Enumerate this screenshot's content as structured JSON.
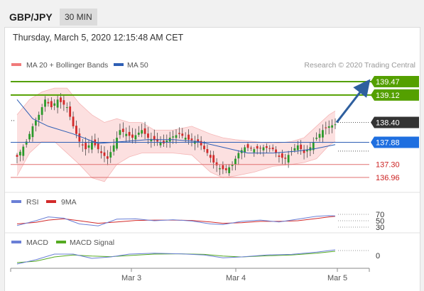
{
  "header": {
    "symbol": "GBP/JPY",
    "timeframe": "30 MIN",
    "datetime": "Thursday, March 5, 2020 12:15:48 AM CET"
  },
  "legend": {
    "bollinger": "MA 20 + Bollinger Bands",
    "ma50": "MA 50",
    "credit": "Research © 2020 Trading Central",
    "rsi": "RSI",
    "rsi_ma": "9MA",
    "macd": "MACD",
    "macd_signal": "MACD Signal"
  },
  "colors": {
    "bull": "#2a9a2a",
    "bear": "#d22a2a",
    "ma50": "#2e5fb5",
    "bollinger": "#f07a7a",
    "resistance": "#54a000",
    "support": "#e07070",
    "arrow": "#2e5f9e",
    "current": "#333333",
    "rsi": "#6a7fd6",
    "macd_signal": "#55aa22"
  },
  "chart_data": [
    {
      "type": "line",
      "name": "price",
      "x_ticks": [
        "Mar 3",
        "Mar 4",
        "Mar 5"
      ],
      "levels": [
        {
          "label": "139.47",
          "value": 139.47,
          "kind": "resistance"
        },
        {
          "label": "139.12",
          "value": 139.12,
          "kind": "resistance"
        },
        {
          "label": "138.40",
          "value": 138.4,
          "kind": "current"
        },
        {
          "label": "137.88",
          "value": 137.88,
          "kind": "pivot"
        },
        {
          "label": "137.30",
          "value": 137.3,
          "kind": "support"
        },
        {
          "label": "136.96",
          "value": 136.96,
          "kind": "support"
        }
      ],
      "close_path": [
        [
          0,
          137.5
        ],
        [
          3,
          137.9
        ],
        [
          5,
          138.3
        ],
        [
          7,
          138.6
        ],
        [
          9,
          139.0
        ],
        [
          11,
          138.8
        ],
        [
          13,
          139.0
        ],
        [
          16,
          138.8
        ],
        [
          18,
          138.3
        ],
        [
          20,
          137.9
        ],
        [
          22,
          137.7
        ],
        [
          24,
          137.9
        ],
        [
          27,
          137.6
        ],
        [
          29,
          137.45
        ],
        [
          31,
          137.8
        ],
        [
          33,
          138.2
        ],
        [
          35,
          138.1
        ],
        [
          37,
          138.0
        ],
        [
          40,
          138.2
        ],
        [
          42,
          138.0
        ],
        [
          45,
          137.9
        ],
        [
          47,
          137.85
        ],
        [
          49,
          138.0
        ],
        [
          52,
          138.1
        ],
        [
          55,
          137.95
        ],
        [
          58,
          137.9
        ],
        [
          61,
          137.6
        ],
        [
          63,
          137.35
        ],
        [
          65,
          137.2
        ],
        [
          67,
          137.15
        ],
        [
          69,
          137.3
        ],
        [
          71,
          137.6
        ],
        [
          73,
          137.75
        ],
        [
          76,
          137.7
        ],
        [
          79,
          137.75
        ],
        [
          82,
          137.7
        ],
        [
          84,
          137.5
        ],
        [
          86,
          137.45
        ],
        [
          88,
          137.65
        ],
        [
          90,
          137.8
        ],
        [
          92,
          137.6
        ],
        [
          94,
          137.75
        ],
        [
          96,
          138.0
        ],
        [
          98,
          138.2
        ],
        [
          100,
          138.3
        ],
        [
          102,
          138.35
        ]
      ],
      "ma50_path": [
        [
          0,
          139.0
        ],
        [
          5,
          138.5
        ],
        [
          10,
          138.3
        ],
        [
          18,
          138.1
        ],
        [
          26,
          137.85
        ],
        [
          34,
          137.9
        ],
        [
          42,
          137.95
        ],
        [
          50,
          137.95
        ],
        [
          58,
          137.9
        ],
        [
          66,
          137.75
        ],
        [
          74,
          137.6
        ],
        [
          82,
          137.6
        ],
        [
          90,
          137.65
        ],
        [
          96,
          137.72
        ],
        [
          102,
          137.82
        ]
      ],
      "bollinger_upper_path": [
        [
          0,
          138.6
        ],
        [
          4,
          139.0
        ],
        [
          8,
          139.2
        ],
        [
          12,
          139.3
        ],
        [
          16,
          139.3
        ],
        [
          20,
          138.9
        ],
        [
          24,
          138.6
        ],
        [
          28,
          138.4
        ],
        [
          32,
          138.5
        ],
        [
          36,
          138.4
        ],
        [
          40,
          138.4
        ],
        [
          44,
          138.2
        ],
        [
          50,
          138.2
        ],
        [
          56,
          138.3
        ],
        [
          62,
          138.1
        ],
        [
          66,
          138.0
        ],
        [
          70,
          137.95
        ],
        [
          76,
          137.9
        ],
        [
          82,
          137.85
        ],
        [
          88,
          137.9
        ],
        [
          92,
          138.0
        ],
        [
          96,
          138.3
        ],
        [
          100,
          138.6
        ],
        [
          102,
          138.7
        ]
      ],
      "bollinger_lower_path": [
        [
          0,
          137.0
        ],
        [
          4,
          137.6
        ],
        [
          8,
          137.9
        ],
        [
          12,
          137.9
        ],
        [
          16,
          137.6
        ],
        [
          20,
          137.3
        ],
        [
          24,
          136.95
        ],
        [
          28,
          136.85
        ],
        [
          32,
          137.3
        ],
        [
          36,
          137.5
        ],
        [
          40,
          137.6
        ],
        [
          44,
          137.6
        ],
        [
          50,
          137.6
        ],
        [
          56,
          137.55
        ],
        [
          62,
          137.1
        ],
        [
          66,
          136.95
        ],
        [
          70,
          137.0
        ],
        [
          76,
          137.1
        ],
        [
          82,
          137.25
        ],
        [
          88,
          137.3
        ],
        [
          92,
          137.35
        ],
        [
          96,
          137.45
        ],
        [
          100,
          137.8
        ],
        [
          102,
          137.9
        ]
      ],
      "projection": {
        "from": 138.4,
        "to": 139.47
      }
    },
    {
      "type": "line",
      "name": "RSI",
      "levels": [
        {
          "label": "70",
          "value": 70
        },
        {
          "label": "50",
          "value": 50
        },
        {
          "label": "30",
          "value": 30
        }
      ],
      "rsi_path": [
        [
          0,
          35
        ],
        [
          6,
          50
        ],
        [
          10,
          62
        ],
        [
          15,
          58
        ],
        [
          20,
          40
        ],
        [
          26,
          34
        ],
        [
          32,
          55
        ],
        [
          38,
          56
        ],
        [
          44,
          50
        ],
        [
          50,
          53
        ],
        [
          56,
          49
        ],
        [
          62,
          40
        ],
        [
          66,
          38
        ],
        [
          72,
          48
        ],
        [
          78,
          52
        ],
        [
          84,
          46
        ],
        [
          90,
          55
        ],
        [
          96,
          64
        ],
        [
          100,
          66
        ],
        [
          102,
          65
        ]
      ],
      "rsi_ma_path": [
        [
          0,
          40
        ],
        [
          6,
          45
        ],
        [
          10,
          52
        ],
        [
          15,
          56
        ],
        [
          20,
          50
        ],
        [
          26,
          42
        ],
        [
          32,
          46
        ],
        [
          38,
          51
        ],
        [
          44,
          52
        ],
        [
          50,
          52
        ],
        [
          56,
          51
        ],
        [
          62,
          46
        ],
        [
          66,
          42
        ],
        [
          72,
          44
        ],
        [
          78,
          48
        ],
        [
          84,
          48
        ],
        [
          90,
          50
        ],
        [
          96,
          57
        ],
        [
          100,
          62
        ],
        [
          102,
          64
        ]
      ]
    },
    {
      "type": "line",
      "name": "MACD",
      "levels": [
        {
          "label": "0",
          "value": 0
        }
      ],
      "macd_path": [
        [
          0,
          -0.3
        ],
        [
          6,
          -0.15
        ],
        [
          12,
          0.05
        ],
        [
          18,
          0.05
        ],
        [
          24,
          -0.1
        ],
        [
          30,
          -0.05
        ],
        [
          36,
          0.05
        ],
        [
          44,
          0.08
        ],
        [
          52,
          0.06
        ],
        [
          60,
          0.02
        ],
        [
          66,
          -0.08
        ],
        [
          72,
          -0.05
        ],
        [
          80,
          0.02
        ],
        [
          88,
          0.04
        ],
        [
          96,
          0.12
        ],
        [
          102,
          0.2
        ]
      ],
      "signal_path": [
        [
          0,
          -0.25
        ],
        [
          6,
          -0.2
        ],
        [
          12,
          -0.05
        ],
        [
          18,
          0.02
        ],
        [
          24,
          -0.02
        ],
        [
          30,
          -0.04
        ],
        [
          36,
          0.0
        ],
        [
          44,
          0.05
        ],
        [
          52,
          0.06
        ],
        [
          60,
          0.04
        ],
        [
          66,
          -0.02
        ],
        [
          72,
          -0.05
        ],
        [
          80,
          -0.01
        ],
        [
          88,
          0.02
        ],
        [
          96,
          0.08
        ],
        [
          102,
          0.15
        ]
      ]
    }
  ]
}
